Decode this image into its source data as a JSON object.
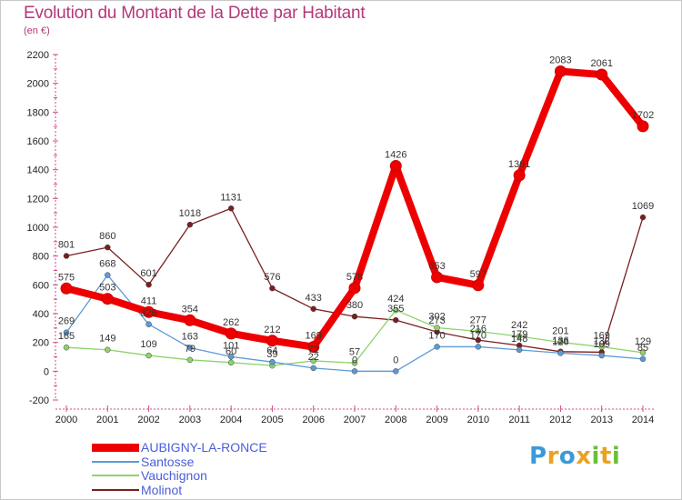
{
  "header": {
    "title": "Evolution du Montant de la Dette par Habitant",
    "subtitle": "(en €)"
  },
  "logo": {
    "letters": [
      "P",
      "r",
      "o",
      "x",
      "i",
      "t",
      "i"
    ],
    "colors": [
      "#3a9ad9",
      "#e8a323",
      "#3a9ad9",
      "#e8a323",
      "#6bbf3a",
      "#e8a323",
      "#6bbf3a"
    ]
  },
  "chart_data": {
    "type": "line",
    "x": [
      2000,
      2001,
      2002,
      2003,
      2004,
      2005,
      2006,
      2007,
      2008,
      2009,
      2010,
      2011,
      2012,
      2013,
      2014
    ],
    "ylim": [
      -200,
      2200
    ],
    "yticks": [
      -200,
      0,
      200,
      400,
      600,
      800,
      1000,
      1200,
      1400,
      1600,
      1800,
      2000,
      2200
    ],
    "grid": false,
    "legend": "bottom-left",
    "series": [
      {
        "name": "Molinot",
        "color": "#7a1f1f",
        "values": [
          801,
          860,
          601,
          1018,
          1131,
          576,
          433,
          380,
          355,
          273,
          216,
          179,
          136,
          132,
          1069
        ],
        "labels": [
          "801",
          "860",
          "601",
          "1018",
          "1131",
          "576",
          "433",
          "380",
          "355",
          "273",
          "216",
          "179",
          "136",
          "132",
          "1069"
        ]
      },
      {
        "name": "Vauchignon",
        "color": "#8ed36b",
        "values": [
          165,
          149,
          109,
          79,
          60,
          39,
          72,
          57,
          424,
          302,
          277,
          242,
          201,
          169,
          129
        ],
        "labels": [
          "165",
          "149",
          "109",
          "79",
          "60",
          "39",
          "72",
          "57",
          "424",
          "302",
          "277",
          "242",
          "201",
          "169",
          "129"
        ]
      },
      {
        "name": "Santosse",
        "color": "#5b9bd5",
        "values": [
          269,
          668,
          326,
          163,
          101,
          64,
          22,
          0,
          0,
          170,
          170,
          148,
          126,
          109,
          85
        ],
        "labels": [
          "269",
          "668",
          "326",
          "163",
          "101",
          "64",
          "22",
          "0",
          "0",
          "170",
          "170",
          "148",
          "126",
          "109",
          "85"
        ]
      },
      {
        "name": "AUBIGNY-LA-RONCE",
        "color": "#ee0000",
        "values": [
          575,
          503,
          411,
          354,
          262,
          212,
          169,
          578,
          1426,
          653,
          597,
          1361,
          2083,
          2061,
          1702
        ],
        "labels": [
          "575",
          "503",
          "411",
          "354",
          "262",
          "212",
          "169",
          "578",
          "1426",
          "653",
          "597",
          "1361",
          "2083",
          "2061",
          "1702"
        ]
      }
    ]
  },
  "legend": {
    "items": [
      {
        "label": "AUBIGNY-LA-RONCE",
        "color": "#ee0000"
      },
      {
        "label": "Santosse",
        "color": "#5b9bd5"
      },
      {
        "label": "Vauchignon",
        "color": "#8ed36b"
      },
      {
        "label": "Molinot",
        "color": "#7a1f1f"
      }
    ]
  }
}
